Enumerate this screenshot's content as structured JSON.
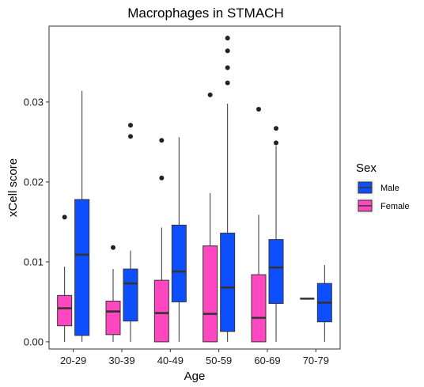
{
  "chart_data": {
    "type": "boxplot",
    "title": "Macrophages in STMACH",
    "xlabel": "Age",
    "ylabel": "xCell score",
    "categories": [
      "20-29",
      "30-39",
      "40-49",
      "50-59",
      "60-69",
      "70-79"
    ],
    "ylim": [
      -0.0009,
      0.0395
    ],
    "yticks": [
      0.0,
      0.01,
      0.02,
      0.03
    ],
    "ytick_labels": [
      "0.00",
      "0.01",
      "0.02",
      "0.03"
    ],
    "grid": false,
    "legend": {
      "title": "Sex",
      "position": "right",
      "entries": [
        "Male",
        "Female"
      ]
    },
    "colors": {
      "Male": "#0d4fff",
      "Female": "#ff47c0"
    },
    "series": [
      {
        "name": "Female",
        "boxes": [
          {
            "category": "20-29",
            "min": 0.0,
            "q1": 0.002,
            "median": 0.0042,
            "q3": 0.0058,
            "max": 0.0094,
            "outliers": [
              0.0156
            ]
          },
          {
            "category": "30-39",
            "min": 0.0,
            "q1": 0.0009,
            "median": 0.0038,
            "q3": 0.0051,
            "max": 0.0091,
            "outliers": [
              0.0118
            ]
          },
          {
            "category": "40-49",
            "min": 0.0,
            "q1": 0.0,
            "median": 0.0036,
            "q3": 0.0077,
            "max": 0.0143,
            "outliers": [
              0.0205,
              0.0252
            ]
          },
          {
            "category": "50-59",
            "min": 0.0,
            "q1": 0.0,
            "median": 0.0035,
            "q3": 0.012,
            "max": 0.0186,
            "outliers": [
              0.0309
            ]
          },
          {
            "category": "60-69",
            "min": 0.0,
            "q1": 0.0,
            "median": 0.003,
            "q3": 0.0084,
            "max": 0.0159,
            "outliers": [
              0.0291
            ]
          },
          {
            "category": "70-79",
            "min": 0.0054,
            "q1": 0.0054,
            "median": 0.0054,
            "q3": 0.0054,
            "max": 0.0054,
            "outliers": []
          }
        ]
      },
      {
        "name": "Male",
        "boxes": [
          {
            "category": "20-29",
            "min": 0.0,
            "q1": 0.0008,
            "median": 0.0109,
            "q3": 0.0178,
            "max": 0.0314,
            "outliers": []
          },
          {
            "category": "30-39",
            "min": 0.0,
            "q1": 0.0026,
            "median": 0.0073,
            "q3": 0.0091,
            "max": 0.0114,
            "outliers": [
              0.0257,
              0.0271
            ]
          },
          {
            "category": "40-49",
            "min": 0.0,
            "q1": 0.005,
            "median": 0.0088,
            "q3": 0.0146,
            "max": 0.0256,
            "outliers": []
          },
          {
            "category": "50-59",
            "min": 0.0,
            "q1": 0.0013,
            "median": 0.0068,
            "q3": 0.0136,
            "max": 0.0298,
            "outliers": [
              0.0324,
              0.0343,
              0.0364,
              0.038
            ]
          },
          {
            "category": "60-69",
            "min": 0.0,
            "q1": 0.0048,
            "median": 0.0093,
            "q3": 0.0128,
            "max": 0.0245,
            "outliers": [
              0.0249,
              0.0267
            ]
          },
          {
            "category": "70-79",
            "min": 0.0,
            "q1": 0.0025,
            "median": 0.0049,
            "q3": 0.0073,
            "max": 0.0096,
            "outliers": []
          }
        ]
      }
    ]
  }
}
